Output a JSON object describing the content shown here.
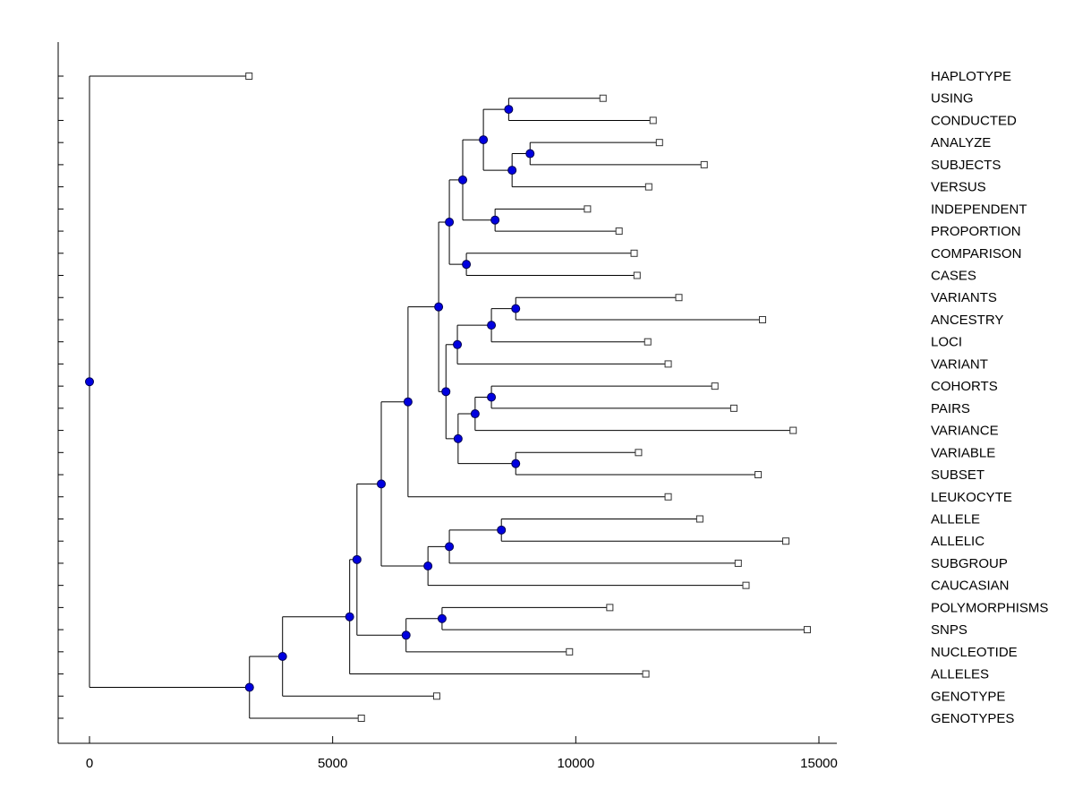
{
  "figure": {
    "background": "#ffffff",
    "axis_color": "#000000",
    "line_color": "#000000",
    "branch_node_color": "#0000e0",
    "branch_node_edge": "#000050",
    "leaf_node_fill": "#ffffff",
    "leaf_node_edge": "#333333",
    "label_color": "#000000",
    "tick_font_size": 15,
    "label_font_size": 15
  },
  "chart_data": {
    "type": "dendrogram",
    "title": "",
    "xlabel": "",
    "ylabel": "",
    "orientation": "horizontal-left-root",
    "grid": false,
    "legend": false,
    "n_leaves": 30,
    "x_ticks": [
      0,
      5000,
      10000,
      15000
    ],
    "xlim": [
      -650,
      15400
    ],
    "leaf_labels": [
      "HAPLOTYPE",
      "USING",
      "CONDUCTED",
      "ANALYZE",
      "SUBJECTS",
      "VERSUS",
      "INDEPENDENT",
      "PROPORTION",
      "COMPARISON",
      "CASES",
      "VARIANTS",
      "ANCESTRY",
      "LOCI",
      "VARIANT",
      "COHORTS",
      "PAIRS",
      "VARIANCE",
      "VARIABLE",
      "SUBSET",
      "LEUKOCYTE",
      "ALLELE",
      "ALLELIC",
      "SUBGROUP",
      "CAUCASIAN",
      "POLYMORPHISMS",
      "SNPS",
      "NUCLEOTIDE",
      "ALLELES",
      "GENOTYPE",
      "GENOTYPES"
    ],
    "tree": {
      "d": 0,
      "children": [
        {
          "name": "HAPLOTYPE",
          "d": 3280
        },
        {
          "d": 3290,
          "children": [
            {
              "d": 3970,
              "children": [
                {
                  "d": 5350,
                  "children": [
                    {
                      "d": 5500,
                      "children": [
                        {
                          "d": 6000,
                          "children": [
                            {
                              "d": 6550,
                              "children": [
                                {
                                  "d": 7180,
                                  "children": [
                                    {
                                      "d": 7400,
                                      "children": [
                                        {
                                          "d": 7675,
                                          "children": [
                                            {
                                              "d": 8100,
                                              "children": [
                                                {
                                                  "d": 8620,
                                                  "children": [
                                                    {
                                                      "name": "USING",
                                                      "d": 10560
                                                    },
                                                    {
                                                      "name": "CONDUCTED",
                                                      "d": 11590
                                                    }
                                                  ]
                                                },
                                                {
                                                  "d": 8690,
                                                  "children": [
                                                    {
                                                      "d": 9060,
                                                      "children": [
                                                        {
                                                          "name": "ANALYZE",
                                                          "d": 11720
                                                        },
                                                        {
                                                          "name": "SUBJECTS",
                                                          "d": 12640
                                                        }
                                                      ]
                                                    },
                                                    {
                                                      "name": "VERSUS",
                                                      "d": 11500
                                                    }
                                                  ]
                                                }
                                              ]
                                            },
                                            {
                                              "d": 8340,
                                              "children": [
                                                {
                                                  "name": "INDEPENDENT",
                                                  "d": 10240
                                                },
                                                {
                                                  "name": "PROPORTION",
                                                  "d": 10890
                                                }
                                              ]
                                            }
                                          ]
                                        },
                                        {
                                          "d": 7750,
                                          "children": [
                                            {
                                              "name": "COMPARISON",
                                              "d": 11200
                                            },
                                            {
                                              "name": "CASES",
                                              "d": 11260
                                            }
                                          ]
                                        }
                                      ]
                                    },
                                    {
                                      "d": 7330,
                                      "children": [
                                        {
                                          "d": 7565,
                                          "children": [
                                            {
                                              "d": 8265,
                                              "children": [
                                                {
                                                  "d": 8765,
                                                  "children": [
                                                    {
                                                      "name": "VARIANTS",
                                                      "d": 12120
                                                    },
                                                    {
                                                      "name": "ANCESTRY",
                                                      "d": 13840
                                                    }
                                                  ]
                                                },
                                                {
                                                  "name": "LOCI",
                                                  "d": 11480
                                                }
                                              ]
                                            },
                                            {
                                              "name": "VARIANT",
                                              "d": 11900
                                            }
                                          ]
                                        },
                                        {
                                          "d": 7580,
                                          "children": [
                                            {
                                              "d": 7930,
                                              "children": [
                                                {
                                                  "d": 8265,
                                                  "children": [
                                                    {
                                                      "name": "COHORTS",
                                                      "d": 12860
                                                    },
                                                    {
                                                      "name": "PAIRS",
                                                      "d": 13250
                                                    }
                                                  ]
                                                },
                                                {
                                                  "name": "VARIANCE",
                                                  "d": 14470
                                                }
                                              ]
                                            },
                                            {
                                              "d": 8765,
                                              "children": [
                                                {
                                                  "name": "VARIABLE",
                                                  "d": 11290
                                                },
                                                {
                                                  "name": "SUBSET",
                                                  "d": 13750
                                                }
                                              ]
                                            }
                                          ]
                                        }
                                      ]
                                    }
                                  ]
                                },
                                {
                                  "name": "LEUKOCYTE",
                                  "d": 11900
                                }
                              ]
                            },
                            {
                              "d": 6960,
                              "children": [
                                {
                                  "d": 7400,
                                  "children": [
                                    {
                                      "d": 8470,
                                      "children": [
                                        {
                                          "name": "ALLELE",
                                          "d": 12550
                                        },
                                        {
                                          "name": "ALLELIC",
                                          "d": 14320
                                        }
                                      ]
                                    },
                                    {
                                      "name": "SUBGROUP",
                                      "d": 13340
                                    }
                                  ]
                                },
                                {
                                  "name": "CAUCASIAN",
                                  "d": 13500
                                }
                              ]
                            }
                          ]
                        },
                        {
                          "d": 6510,
                          "children": [
                            {
                              "d": 7250,
                              "children": [
                                {
                                  "name": "POLYMORPHISMS",
                                  "d": 10700
                                },
                                {
                                  "name": "SNPS",
                                  "d": 14760
                                }
                              ]
                            },
                            {
                              "name": "NUCLEOTIDE",
                              "d": 9870
                            }
                          ]
                        }
                      ]
                    },
                    {
                      "name": "ALLELES",
                      "d": 11440
                    }
                  ]
                },
                {
                  "name": "GENOTYPE",
                  "d": 7140
                }
              ]
            },
            {
              "name": "GENOTYPES",
              "d": 5590
            }
          ]
        }
      ]
    }
  }
}
